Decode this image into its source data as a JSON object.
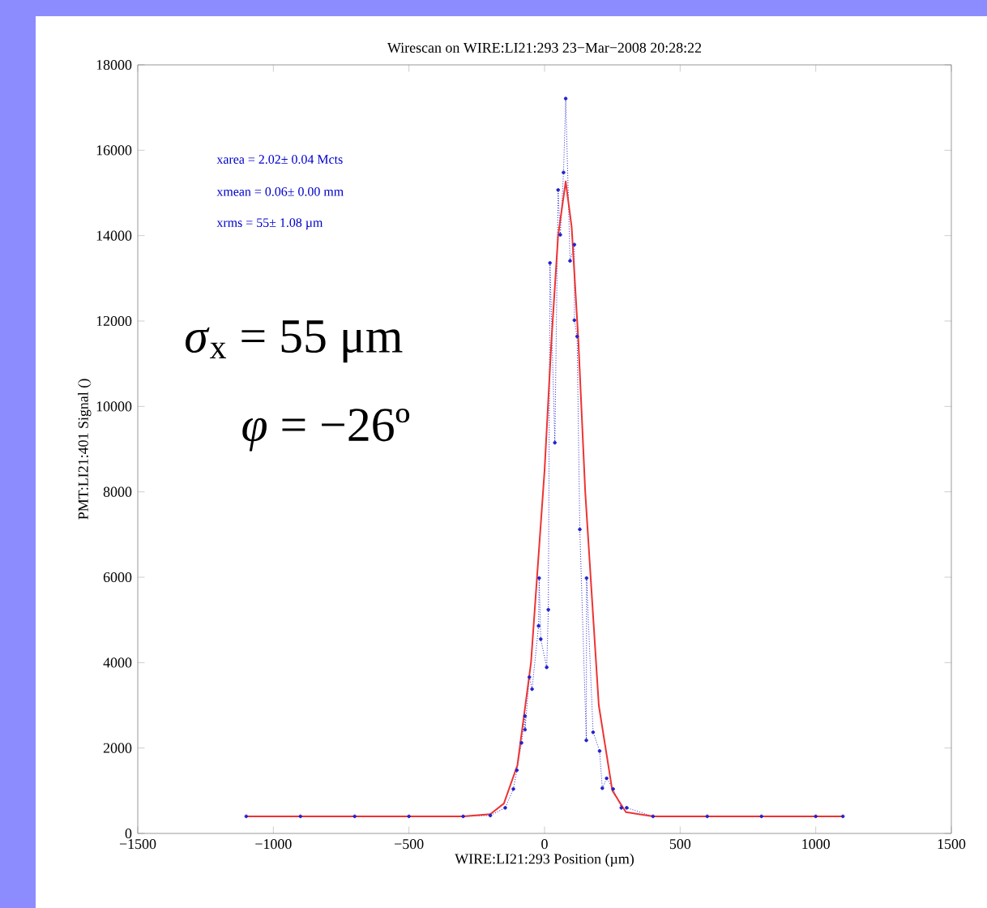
{
  "chart_data": {
    "type": "line",
    "title": "Wirescan on WIRE:LI21:293 23−Mar−2008 20:28:22",
    "xlabel": "WIRE:LI21:293 Position  (µm)",
    "ylabel": "PMT:LI21:401 Signal  ()",
    "xlim": [
      -1500,
      1500
    ],
    "xticks": [
      {
        "value": -1500,
        "label": "−1500"
      },
      {
        "value": -1000,
        "label": "−1000"
      },
      {
        "value": -500,
        "label": "−500"
      },
      0,
      500,
      1000,
      1500
    ],
    "ylim": [
      0,
      18000
    ],
    "yticks": [
      0,
      2000,
      4000,
      6000,
      8000,
      10000,
      12000,
      14000,
      16000,
      18000
    ],
    "grid": false,
    "series": [
      {
        "color": "#2222cc",
        "marker": "circle",
        "line_style": "dotted",
        "x": [
          -1100,
          -900,
          -700,
          -500,
          -300,
          -200,
          -145,
          -115,
          -102,
          -85,
          -72,
          -72,
          -56,
          -46,
          -22,
          -20,
          -14,
          8,
          14,
          20,
          38,
          50,
          58,
          70,
          78,
          94,
          110,
          110,
          120,
          130,
          154,
          155,
          179,
          203,
          213,
          229,
          253,
          283,
          303,
          400,
          600,
          800,
          1000,
          1100
        ],
        "values": [
          400,
          400,
          400,
          400,
          400,
          420,
          600,
          1040,
          1480,
          2120,
          2750,
          2430,
          3660,
          3380,
          4860,
          5980,
          4550,
          3890,
          5240,
          13360,
          9150,
          15070,
          14020,
          15480,
          17210,
          13410,
          13790,
          12020,
          11640,
          7120,
          2180,
          5980,
          2370,
          1930,
          1060,
          1290,
          1040,
          600,
          600,
          400,
          400,
          400,
          400,
          400
        ]
      },
      {
        "color": "#ee3333",
        "marker": "none",
        "line_style": "solid",
        "x": [
          -1100,
          -300,
          -200,
          -150,
          -100,
          -50,
          0,
          25,
          50,
          78,
          100,
          125,
          150,
          200,
          250,
          300,
          400,
          1100
        ],
        "values": [
          400,
          400,
          450,
          700,
          1600,
          4000,
          8500,
          11500,
          14000,
          15270,
          14200,
          11500,
          8000,
          3000,
          1000,
          500,
          400,
          400
        ]
      }
    ],
    "annotations": [
      "xarea =  2.02± 0.04 Mcts",
      "xmean =  0.06± 0.00 mm",
      "xrms =   55± 1.08 µm",
      "*σ*$_{x}$ = 55 μm",
      "*φ* = −26º"
    ]
  }
}
